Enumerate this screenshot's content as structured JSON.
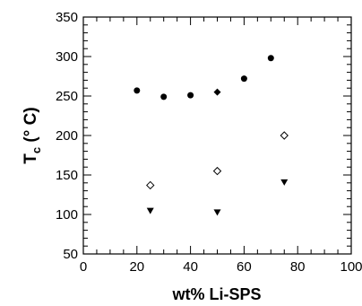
{
  "chart_data": {
    "type": "scatter",
    "title": "",
    "xlabel": "wt% Li-SPS",
    "ylabel_main": "T",
    "ylabel_sub": "c",
    "ylabel_unit": "(° C)",
    "xlim": [
      0,
      100
    ],
    "ylim": [
      50,
      350
    ],
    "xticks": [
      0,
      20,
      40,
      60,
      80,
      100
    ],
    "yticks": [
      50,
      100,
      150,
      200,
      250,
      300,
      350
    ],
    "grid": false,
    "legend": "none",
    "series": [
      {
        "marker": "filled-circle",
        "x": [
          20,
          30,
          40,
          60,
          70
        ],
        "y": [
          257,
          249,
          251,
          272,
          298
        ]
      },
      {
        "marker": "filled-diamond",
        "x": [
          50
        ],
        "y": [
          255
        ]
      },
      {
        "marker": "open-diamond",
        "x": [
          25,
          50,
          75
        ],
        "y": [
          137,
          155,
          200
        ]
      },
      {
        "marker": "filled-triangle-down",
        "x": [
          25,
          50,
          75
        ],
        "y": [
          105,
          103,
          141
        ]
      }
    ]
  }
}
